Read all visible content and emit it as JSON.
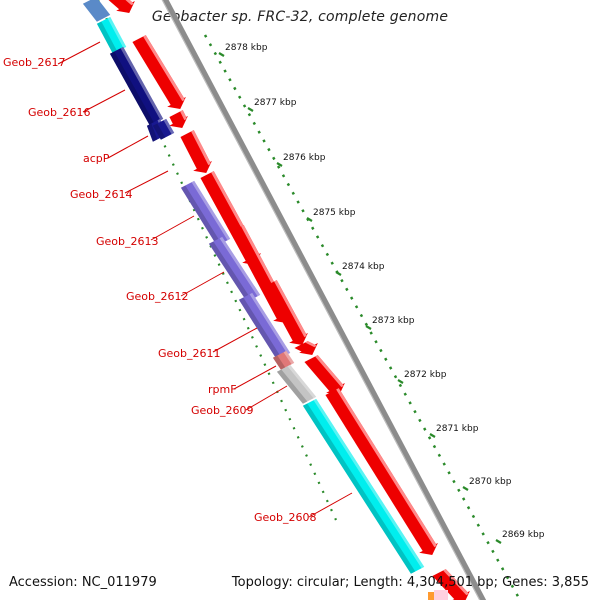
{
  "title": "Geobacter sp. FRC-32, complete genome",
  "accession_text": "Accession: NC_011979",
  "topology_text": "Topology: circular; Length: 4,304,501 bp; Genes: 3,855",
  "colors": {
    "backbone": "#8c8c8c",
    "forward_cds": "#ee0000",
    "label": "#d40000",
    "scale_dots": "#2a8a2a"
  },
  "scale": {
    "labels": [
      "2878 kbp",
      "2877 kbp",
      "2876 kbp",
      "2875 kbp",
      "2874 kbp",
      "2873 kbp",
      "2872 kbp",
      "2871 kbp",
      "2870 kbp",
      "2869 kbp"
    ]
  },
  "genes": [
    {
      "label": "Geob_2617",
      "color": "#26b6b6"
    },
    {
      "label": "Geob_2616",
      "color": "#101080"
    },
    {
      "label": "acpP",
      "color": "#181890"
    },
    {
      "label": "Geob_2614",
      "color": ""
    },
    {
      "label": "Geob_2613",
      "color": "#7a6ad6"
    },
    {
      "label": "Geob_2612",
      "color": "#7a6ad6"
    },
    {
      "label": "Geob_2611",
      "color": "#7a6ad6"
    },
    {
      "label": "rpmF",
      "color": "#e07878"
    },
    {
      "label": "Geob_2609",
      "color": "#c4c4c4"
    },
    {
      "label": "Geob_2608",
      "color": "#00eeee"
    }
  ]
}
